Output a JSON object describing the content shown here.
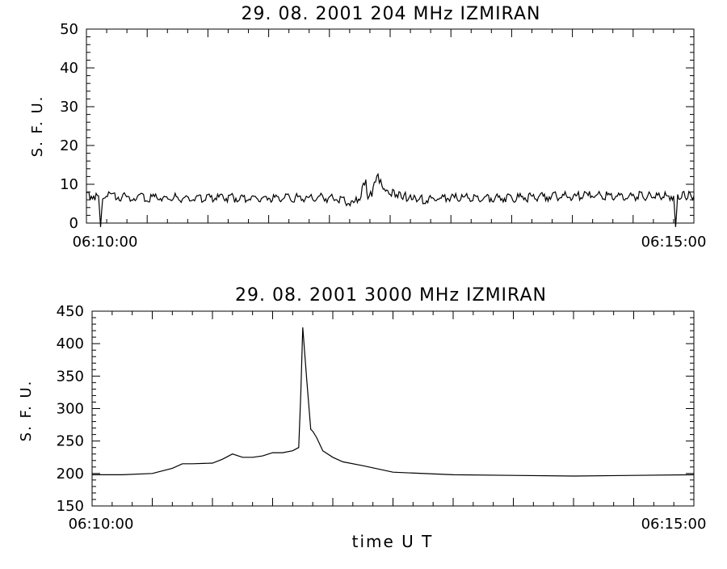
{
  "chart_data": [
    {
      "type": "line",
      "title": "29.  08.  2001    204 MHz    IZMIRAN",
      "ylabel": "S. F. U.",
      "xlabel": "",
      "ylim": [
        0,
        50
      ],
      "xlim": [
        "06:10:00",
        "06:15:00"
      ],
      "y_ticks": [
        "0",
        "10",
        "20",
        "30",
        "40",
        "50"
      ],
      "x_tick_labels": [
        "06:10:00",
        "06:15:00"
      ],
      "grid": false,
      "series": [
        {
          "x": [
            "06:10:00",
            "06:10:06",
            "06:10:07",
            "06:10:08",
            "06:10:30",
            "06:11:00",
            "06:11:30",
            "06:12:00",
            "06:12:12",
            "06:12:15",
            "06:12:18",
            "06:12:19",
            "06:12:21",
            "06:12:24",
            "06:12:26",
            "06:12:30",
            "06:12:35",
            "06:12:40",
            "06:12:45",
            "06:13:00",
            "06:13:30",
            "06:14:00",
            "06:14:30",
            "06:14:50",
            "06:14:51",
            "06:14:52",
            "06:15:00"
          ],
          "y": [
            7,
            7,
            -1,
            7,
            6.5,
            6.5,
            6.5,
            6.5,
            5,
            7,
            10.5,
            7,
            8,
            12,
            9.5,
            8,
            7,
            6.5,
            6,
            6.5,
            6.5,
            7,
            7,
            7,
            -1,
            7,
            7
          ]
        }
      ]
    },
    {
      "type": "line",
      "title": "29.  08.  2001    3000 MHz    IZMIRAN",
      "ylabel": "S. F. U.",
      "xlabel": "time   U T",
      "ylim": [
        150,
        450
      ],
      "xlim": [
        "06:10:00",
        "06:15:00"
      ],
      "y_ticks": [
        "150",
        "200",
        "250",
        "300",
        "350",
        "400",
        "450"
      ],
      "x_tick_labels": [
        "06:10:00",
        "06:15:00"
      ],
      "grid": false,
      "series": [
        {
          "x": [
            "06:10:00",
            "06:10:15",
            "06:10:30",
            "06:10:40",
            "06:10:45",
            "06:10:50",
            "06:11:00",
            "06:11:05",
            "06:11:10",
            "06:11:15",
            "06:11:20",
            "06:11:25",
            "06:11:30",
            "06:11:35",
            "06:11:40",
            "06:11:43",
            "06:11:44",
            "06:11:45",
            "06:11:47",
            "06:11:49",
            "06:11:50",
            "06:11:52",
            "06:11:55",
            "06:12:00",
            "06:12:05",
            "06:12:15",
            "06:12:30",
            "06:13:00",
            "06:13:30",
            "06:14:00",
            "06:14:30",
            "06:15:00"
          ],
          "y": [
            198,
            198,
            200,
            208,
            215,
            215,
            216,
            222,
            230,
            225,
            225,
            227,
            232,
            232,
            235,
            240,
            320,
            425,
            345,
            268,
            265,
            255,
            235,
            225,
            218,
            212,
            202,
            198,
            197,
            196,
            197,
            198
          ]
        }
      ]
    }
  ]
}
